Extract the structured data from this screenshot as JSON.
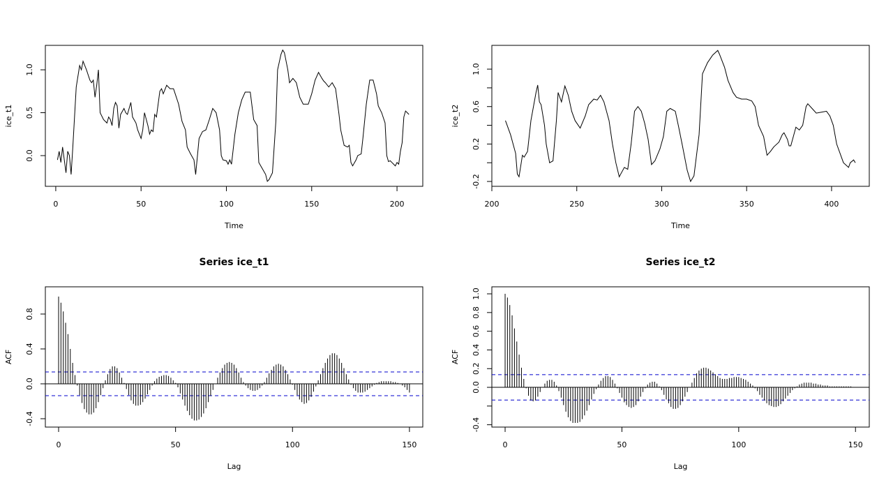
{
  "chart_data": [
    {
      "type": "line",
      "xlabel": "Time",
      "ylabel": "ice_t1",
      "color": "#000000",
      "x": [
        1,
        2,
        3,
        4,
        5,
        6,
        7,
        8,
        9,
        10,
        12,
        14,
        15,
        16,
        18,
        20,
        21,
        22,
        23,
        24,
        25,
        26,
        28,
        30,
        31,
        32,
        33,
        34,
        35,
        36,
        37,
        38,
        40,
        41,
        42,
        44,
        45,
        47,
        48,
        50,
        51,
        52,
        54,
        55,
        56,
        57,
        58,
        59,
        61,
        62,
        63,
        65,
        67,
        69,
        70,
        72,
        74,
        76,
        77,
        79,
        81,
        82,
        84,
        86,
        88,
        90,
        92,
        94,
        96,
        97,
        98,
        100,
        101,
        102,
        103,
        105,
        107,
        109,
        111,
        114,
        116,
        118,
        119,
        121,
        123,
        124,
        125,
        127,
        129,
        130,
        132,
        133,
        134,
        136,
        137,
        139,
        141,
        143,
        145,
        148,
        150,
        152,
        154,
        156,
        157,
        158,
        160,
        162,
        164,
        166,
        167,
        169,
        171,
        172,
        173,
        174,
        176,
        177,
        179,
        180,
        182,
        184,
        186,
        188,
        189,
        191,
        193,
        194,
        195,
        196,
        197,
        198,
        199,
        200,
        201,
        202,
        203,
        204,
        205,
        206,
        207
      ],
      "values": [
        -0.05,
        0.05,
        -0.08,
        0.1,
        -0.05,
        -0.2,
        0.05,
        0,
        -0.22,
        0.1,
        0.8,
        1.05,
        1.0,
        1.1,
        1.0,
        0.88,
        0.85,
        0.88,
        0.68,
        0.82,
        1.0,
        0.5,
        0.42,
        0.38,
        0.45,
        0.42,
        0.35,
        0.55,
        0.62,
        0.58,
        0.32,
        0.48,
        0.55,
        0.5,
        0.48,
        0.62,
        0.45,
        0.38,
        0.3,
        0.2,
        0.3,
        0.5,
        0.35,
        0.25,
        0.3,
        0.28,
        0.48,
        0.45,
        0.75,
        0.78,
        0.72,
        0.82,
        0.78,
        0.78,
        0.72,
        0.6,
        0.4,
        0.3,
        0.1,
        0.02,
        -0.05,
        -0.22,
        0.2,
        0.28,
        0.3,
        0.42,
        0.55,
        0.5,
        0.3,
        0.0,
        -0.05,
        -0.06,
        -0.1,
        -0.05,
        -0.1,
        0.25,
        0.5,
        0.65,
        0.74,
        0.74,
        0.42,
        0.35,
        -0.08,
        -0.15,
        -0.22,
        -0.3,
        -0.28,
        -0.2,
        0.4,
        1.0,
        1.18,
        1.23,
        1.2,
        1.0,
        0.85,
        0.9,
        0.85,
        0.68,
        0.6,
        0.6,
        0.72,
        0.88,
        0.97,
        0.9,
        0.87,
        0.85,
        0.8,
        0.85,
        0.78,
        0.48,
        0.3,
        0.12,
        0.1,
        0.12,
        -0.08,
        -0.12,
        -0.05,
        0.0,
        0.02,
        0.2,
        0.6,
        0.88,
        0.88,
        0.72,
        0.58,
        0.5,
        0.38,
        0.0,
        -0.07,
        -0.06,
        -0.08,
        -0.1,
        -0.12,
        -0.08,
        -0.1,
        0.05,
        0.15,
        0.45,
        0.52,
        0.5,
        0.48
      ],
      "xlim": [
        -6.1,
        215.1
      ],
      "ylim": [
        -0.358,
        1.285
      ],
      "xticks": [
        0,
        50,
        100,
        150,
        200
      ],
      "yticks": [
        {
          "value": 0,
          "label": "0.0"
        },
        {
          "value": 0.5,
          "label": "0.5"
        },
        {
          "value": 1,
          "label": "1.0"
        }
      ]
    },
    {
      "type": "line",
      "xlabel": "Time",
      "ylabel": "ice_t2",
      "color": "#000000",
      "x": [
        208,
        211,
        214,
        215,
        216,
        218,
        219,
        221,
        223,
        226,
        227,
        228,
        229,
        231,
        232,
        234,
        236,
        238,
        239,
        241,
        243,
        245,
        247,
        249,
        252,
        255,
        257,
        260,
        262,
        264,
        266,
        269,
        271,
        273,
        275,
        278,
        280,
        282,
        284,
        286,
        288,
        290,
        292,
        294,
        296,
        299,
        301,
        303,
        305,
        308,
        310,
        312,
        315,
        317,
        319,
        322,
        324,
        327,
        330,
        333,
        334,
        337,
        339,
        342,
        344,
        347,
        350,
        353,
        355,
        357,
        360,
        362,
        364,
        366,
        369,
        371,
        372,
        374,
        375,
        376,
        379,
        381,
        383,
        385,
        386,
        389,
        391,
        394,
        397,
        399,
        401,
        403,
        405,
        407,
        410,
        411,
        413,
        414
      ],
      "values": [
        0.45,
        0.3,
        0.1,
        -0.12,
        -0.15,
        0.08,
        0.06,
        0.12,
        0.45,
        0.75,
        0.83,
        0.65,
        0.62,
        0.4,
        0.2,
        0.0,
        0.02,
        0.45,
        0.75,
        0.65,
        0.82,
        0.72,
        0.55,
        0.45,
        0.37,
        0.5,
        0.62,
        0.68,
        0.67,
        0.72,
        0.65,
        0.45,
        0.2,
        0.0,
        -0.15,
        -0.05,
        -0.07,
        0.2,
        0.55,
        0.6,
        0.55,
        0.42,
        0.25,
        -0.02,
        0.02,
        0.15,
        0.28,
        0.55,
        0.58,
        0.55,
        0.38,
        0.2,
        -0.08,
        -0.2,
        -0.14,
        0.3,
        0.95,
        1.07,
        1.15,
        1.2,
        1.16,
        1.02,
        0.88,
        0.75,
        0.7,
        0.68,
        0.68,
        0.66,
        0.6,
        0.4,
        0.28,
        0.08,
        0.12,
        0.17,
        0.22,
        0.3,
        0.32,
        0.25,
        0.18,
        0.18,
        0.38,
        0.35,
        0.4,
        0.6,
        0.63,
        0.57,
        0.53,
        0.54,
        0.55,
        0.5,
        0.4,
        0.2,
        0.1,
        0.0,
        -0.05,
        0.0,
        0.03,
        0.0
      ],
      "xlim": [
        200,
        422.2
      ],
      "ylim": [
        -0.252,
        1.254
      ],
      "xticks": [
        200,
        250,
        300,
        350,
        400
      ],
      "yticks": [
        {
          "value": -0.2,
          "label": "-0.2"
        },
        {
          "value": 0,
          "label": null
        },
        {
          "value": 0.2,
          "label": "0.2"
        },
        {
          "value": 0.4,
          "label": null
        },
        {
          "value": 0.6,
          "label": "0.6"
        },
        {
          "value": 0.8,
          "label": null
        },
        {
          "value": 1,
          "label": "1.0"
        }
      ]
    },
    {
      "type": "bar",
      "title": "Series  ice_t1",
      "xlabel": "Lag",
      "ylabel": "ACF",
      "color": "#000000",
      "x": [
        0,
        1,
        2,
        3,
        4,
        5,
        6,
        7,
        8,
        9,
        10,
        11,
        12,
        13,
        14,
        15,
        16,
        17,
        18,
        19,
        20,
        21,
        22,
        23,
        24,
        25,
        26,
        27,
        28,
        29,
        30,
        31,
        32,
        33,
        34,
        35,
        36,
        37,
        38,
        39,
        40,
        41,
        42,
        43,
        44,
        45,
        46,
        47,
        48,
        49,
        50,
        51,
        52,
        53,
        54,
        55,
        56,
        57,
        58,
        59,
        60,
        61,
        62,
        63,
        64,
        65,
        66,
        67,
        68,
        69,
        70,
        71,
        72,
        73,
        74,
        75,
        76,
        77,
        78,
        79,
        80,
        81,
        82,
        83,
        84,
        85,
        86,
        87,
        88,
        89,
        90,
        91,
        92,
        93,
        94,
        95,
        96,
        97,
        98,
        99,
        100,
        101,
        102,
        103,
        104,
        105,
        106,
        107,
        108,
        109,
        110,
        111,
        112,
        113,
        114,
        115,
        116,
        117,
        118,
        119,
        120,
        121,
        122,
        123,
        124,
        125,
        126,
        127,
        128,
        129,
        130,
        131,
        132,
        133,
        134,
        135,
        136,
        137,
        138,
        139,
        140,
        141,
        142,
        143,
        144,
        145,
        146,
        147,
        148,
        149,
        150
      ],
      "values": [
        1.0,
        0.93,
        0.83,
        0.7,
        0.57,
        0.4,
        0.24,
        0.1,
        -0.02,
        -0.13,
        -0.22,
        -0.29,
        -0.33,
        -0.35,
        -0.35,
        -0.33,
        -0.28,
        -0.21,
        -0.13,
        -0.05,
        0.04,
        0.11,
        0.17,
        0.2,
        0.2,
        0.18,
        0.13,
        0.07,
        0.01,
        -0.06,
        -0.13,
        -0.19,
        -0.23,
        -0.25,
        -0.25,
        -0.24,
        -0.21,
        -0.17,
        -0.12,
        -0.07,
        -0.02,
        0.03,
        0.06,
        0.08,
        0.09,
        0.1,
        0.1,
        0.09,
        0.07,
        0.04,
        0.01,
        -0.04,
        -0.11,
        -0.18,
        -0.25,
        -0.31,
        -0.36,
        -0.4,
        -0.42,
        -0.42,
        -0.41,
        -0.38,
        -0.34,
        -0.28,
        -0.21,
        -0.14,
        -0.07,
        0.0,
        0.07,
        0.13,
        0.18,
        0.22,
        0.24,
        0.25,
        0.24,
        0.22,
        0.18,
        0.13,
        0.07,
        0.02,
        -0.02,
        -0.05,
        -0.07,
        -0.08,
        -0.08,
        -0.07,
        -0.05,
        -0.02,
        0.02,
        0.07,
        0.12,
        0.16,
        0.2,
        0.22,
        0.23,
        0.22,
        0.2,
        0.16,
        0.11,
        0.05,
        -0.01,
        -0.07,
        -0.13,
        -0.18,
        -0.21,
        -0.23,
        -0.22,
        -0.19,
        -0.15,
        -0.09,
        -0.03,
        0.04,
        0.11,
        0.18,
        0.24,
        0.29,
        0.33,
        0.35,
        0.35,
        0.33,
        0.29,
        0.24,
        0.18,
        0.11,
        0.05,
        -0.01,
        -0.05,
        -0.08,
        -0.1,
        -0.1,
        -0.1,
        -0.09,
        -0.07,
        -0.05,
        -0.03,
        -0.01,
        0.01,
        0.02,
        0.03,
        0.03,
        0.03,
        0.03,
        0.03,
        0.02,
        0.02,
        0.01,
        0.0,
        -0.02,
        -0.04,
        -0.07,
        -0.1
      ],
      "reference_lines": [
        {
          "value": 0.136,
          "color": "#0000cc",
          "style": "dashed"
        },
        {
          "value": -0.136,
          "color": "#0000cc",
          "style": "dashed"
        }
      ],
      "xlim": [
        -5.67,
        155.7
      ],
      "ylim": [
        -0.496,
        1.112
      ],
      "xticks": [
        0,
        50,
        100,
        150
      ],
      "yticks": [
        {
          "value": -0.4,
          "label": "-0.4"
        },
        {
          "value": 0,
          "label": "0.0"
        },
        {
          "value": 0.4,
          "label": "0.4"
        },
        {
          "value": 0.8,
          "label": "0.8"
        }
      ]
    },
    {
      "type": "bar",
      "title": "Series  ice_t2",
      "xlabel": "Lag",
      "ylabel": "ACF",
      "color": "#000000",
      "x": [
        0,
        1,
        2,
        3,
        4,
        5,
        6,
        7,
        8,
        9,
        10,
        11,
        12,
        13,
        14,
        15,
        16,
        17,
        18,
        19,
        20,
        21,
        22,
        23,
        24,
        25,
        26,
        27,
        28,
        29,
        30,
        31,
        32,
        33,
        34,
        35,
        36,
        37,
        38,
        39,
        40,
        41,
        42,
        43,
        44,
        45,
        46,
        47,
        48,
        49,
        50,
        51,
        52,
        53,
        54,
        55,
        56,
        57,
        58,
        59,
        60,
        61,
        62,
        63,
        64,
        65,
        66,
        67,
        68,
        69,
        70,
        71,
        72,
        73,
        74,
        75,
        76,
        77,
        78,
        79,
        80,
        81,
        82,
        83,
        84,
        85,
        86,
        87,
        88,
        89,
        90,
        91,
        92,
        93,
        94,
        95,
        96,
        97,
        98,
        99,
        100,
        101,
        102,
        103,
        104,
        105,
        106,
        107,
        108,
        109,
        110,
        111,
        112,
        113,
        114,
        115,
        116,
        117,
        118,
        119,
        120,
        121,
        122,
        123,
        124,
        125,
        126,
        127,
        128,
        129,
        130,
        131,
        132,
        133,
        134,
        135,
        136,
        137,
        138,
        139,
        140,
        141,
        142,
        143,
        144,
        145,
        146,
        147,
        148,
        149,
        150
      ],
      "values": [
        1.0,
        0.96,
        0.88,
        0.77,
        0.63,
        0.49,
        0.35,
        0.21,
        0.09,
        -0.01,
        -0.09,
        -0.14,
        -0.15,
        -0.14,
        -0.1,
        -0.05,
        0.0,
        0.04,
        0.07,
        0.08,
        0.08,
        0.06,
        0.02,
        -0.04,
        -0.11,
        -0.19,
        -0.26,
        -0.32,
        -0.36,
        -0.38,
        -0.38,
        -0.38,
        -0.37,
        -0.34,
        -0.3,
        -0.25,
        -0.19,
        -0.13,
        -0.07,
        -0.02,
        0.03,
        0.07,
        0.1,
        0.12,
        0.12,
        0.11,
        0.08,
        0.04,
        -0.01,
        -0.06,
        -0.11,
        -0.16,
        -0.19,
        -0.21,
        -0.22,
        -0.21,
        -0.19,
        -0.15,
        -0.1,
        -0.05,
        -0.01,
        0.03,
        0.05,
        0.06,
        0.06,
        0.04,
        0.01,
        -0.03,
        -0.08,
        -0.13,
        -0.17,
        -0.21,
        -0.23,
        -0.23,
        -0.22,
        -0.19,
        -0.15,
        -0.1,
        -0.05,
        0.0,
        0.05,
        0.1,
        0.15,
        0.18,
        0.2,
        0.21,
        0.21,
        0.2,
        0.18,
        0.16,
        0.14,
        0.12,
        0.1,
        0.09,
        0.09,
        0.09,
        0.1,
        0.1,
        0.11,
        0.11,
        0.11,
        0.1,
        0.09,
        0.08,
        0.06,
        0.04,
        0.02,
        -0.01,
        -0.04,
        -0.08,
        -0.11,
        -0.14,
        -0.17,
        -0.19,
        -0.2,
        -0.21,
        -0.21,
        -0.2,
        -0.18,
        -0.15,
        -0.12,
        -0.09,
        -0.06,
        -0.03,
        -0.01,
        0.01,
        0.03,
        0.04,
        0.05,
        0.05,
        0.05,
        0.05,
        0.04,
        0.04,
        0.03,
        0.03,
        0.02,
        0.02,
        0.02,
        0.01,
        0.01,
        0.01,
        0.01,
        0.01,
        0.01,
        0.01,
        0.01,
        0.01,
        0.01,
        0.0,
        0.0
      ],
      "reference_lines": [
        {
          "value": 0.136,
          "color": "#0000cc",
          "style": "dashed"
        },
        {
          "value": -0.136,
          "color": "#0000cc",
          "style": "dashed"
        }
      ],
      "xlim": [
        -5.68,
        155.9
      ],
      "ylim": [
        -0.425,
        1.075
      ],
      "xticks": [
        0,
        50,
        100,
        150
      ],
      "yticks": [
        {
          "value": -0.4,
          "label": "-0.4"
        },
        {
          "value": -0.2,
          "label": null
        },
        {
          "value": 0,
          "label": "0.0"
        },
        {
          "value": 0.2,
          "label": "0.2"
        },
        {
          "value": 0.4,
          "label": "0.4"
        },
        {
          "value": 0.6,
          "label": "0.6"
        },
        {
          "value": 0.8,
          "label": "0.8"
        },
        {
          "value": 1,
          "label": "1.0"
        }
      ]
    }
  ]
}
